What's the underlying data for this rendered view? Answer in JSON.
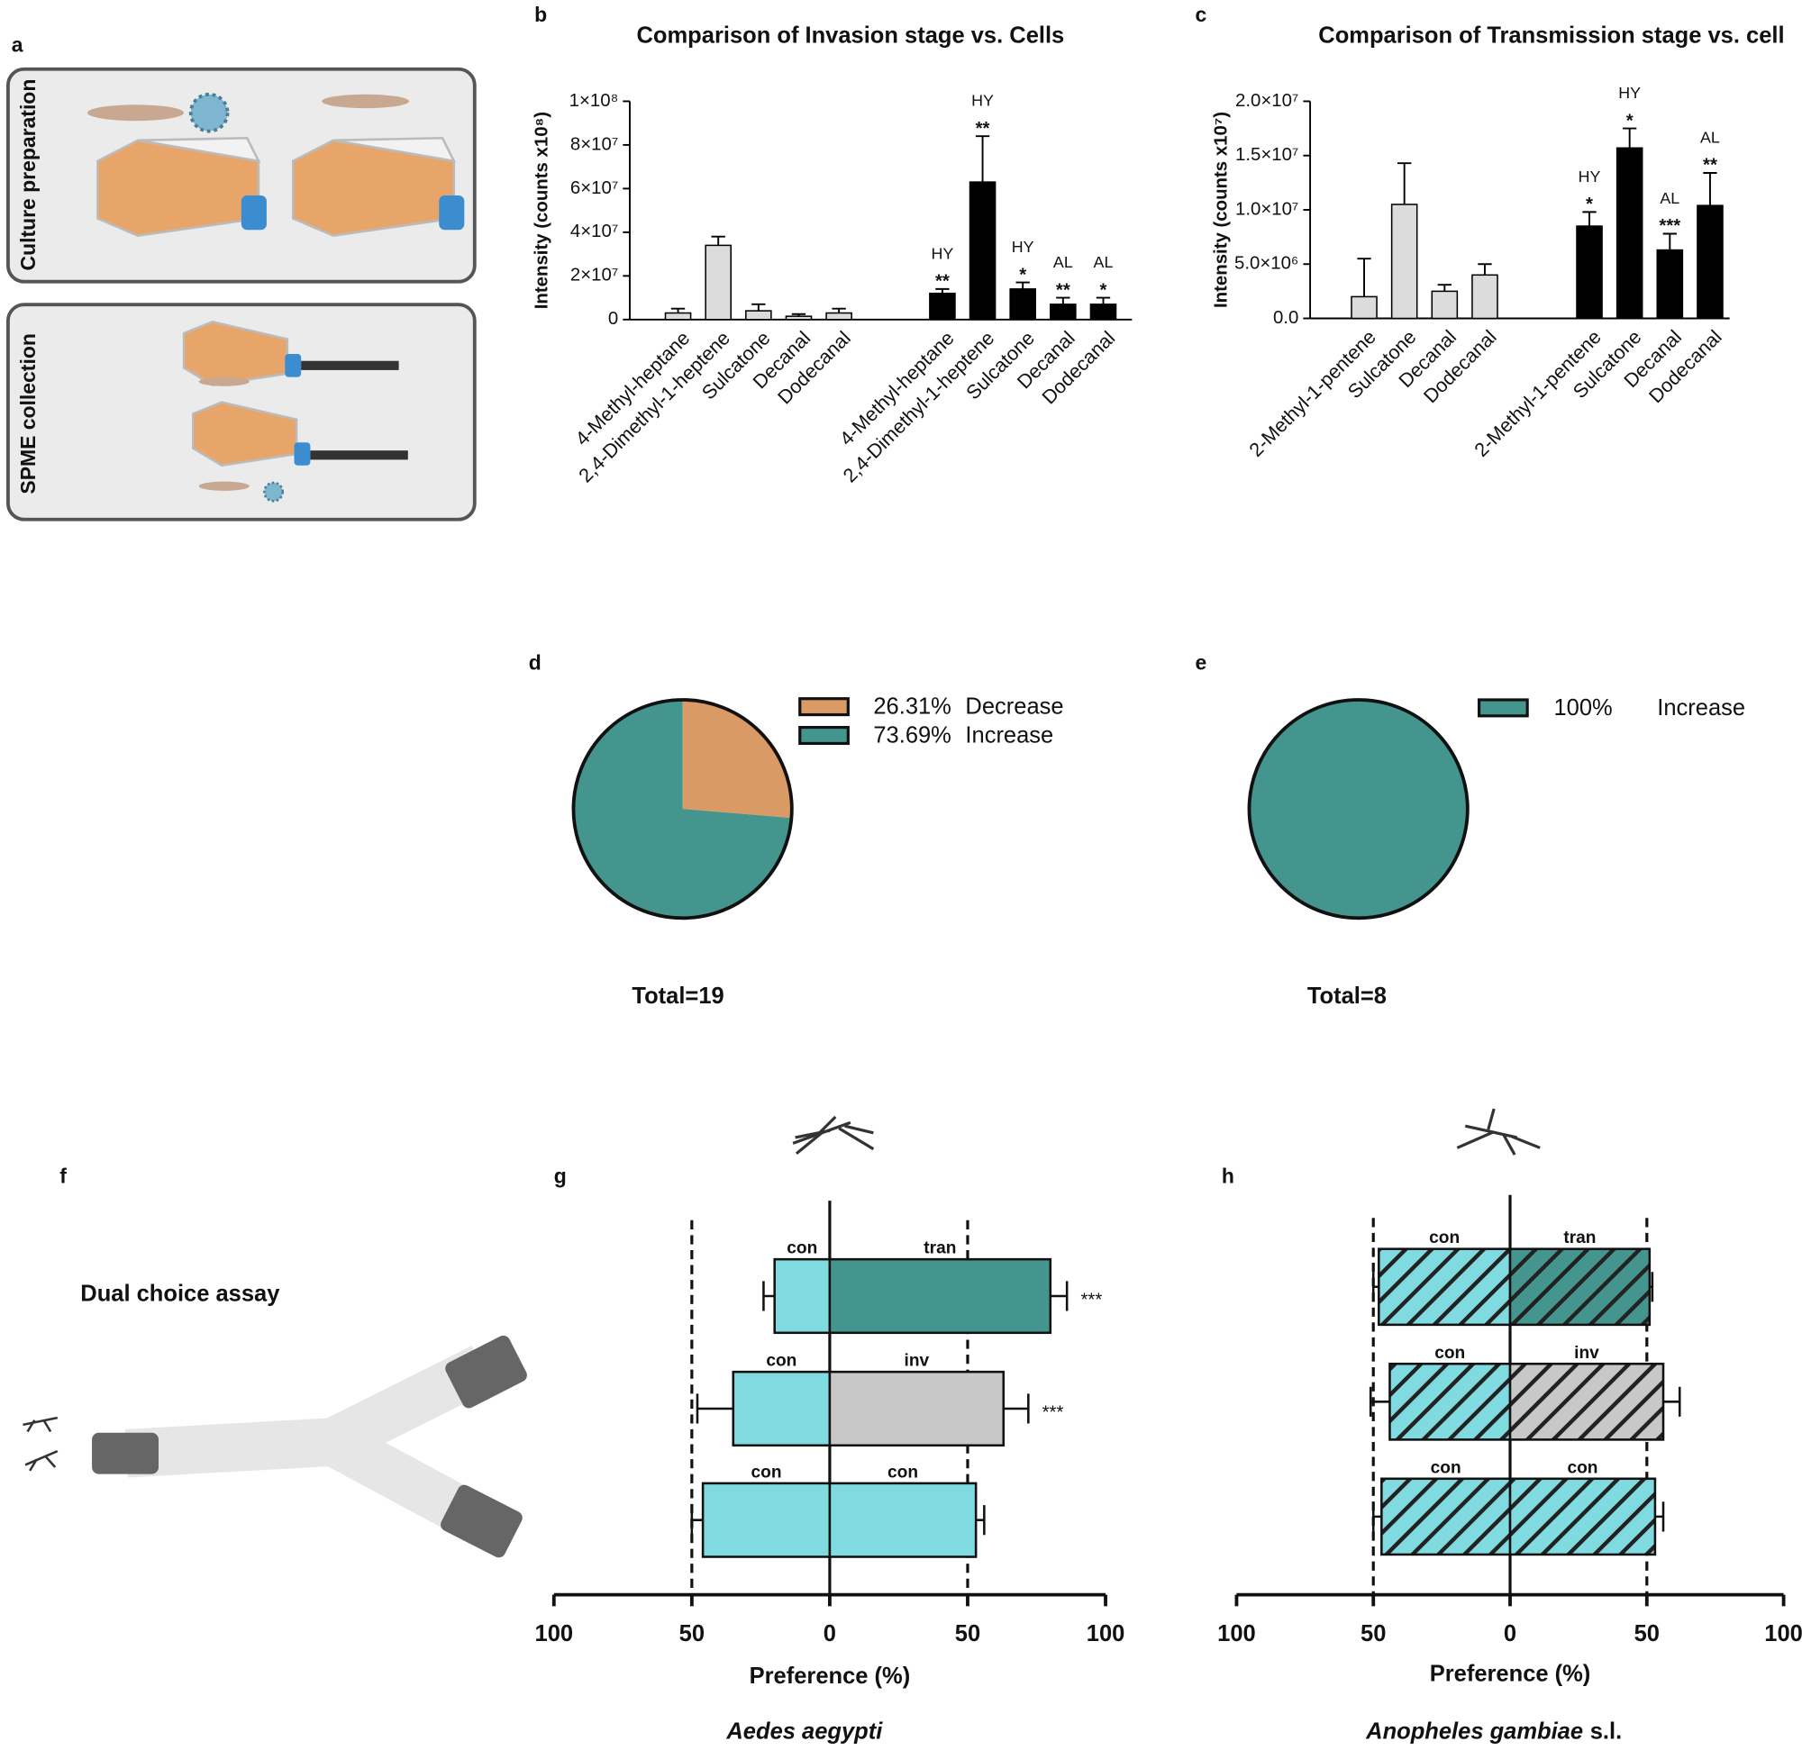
{
  "panels": {
    "a": {
      "label": "a",
      "steps": [
        "Culture preparation",
        "SPME collection"
      ]
    },
    "f": {
      "label": "f",
      "title": "Dual choice assay"
    }
  },
  "chart_data": [
    {
      "type": "bar",
      "label": "b",
      "title": "Comparison of Invasion stage vs. Cells",
      "ylabel": "Intensity (counts x10⁸)",
      "ylim": [
        0,
        100000000
      ],
      "yticks": [
        0,
        {
          "value": 20000000,
          "label": "2×10⁷"
        },
        {
          "value": 40000000,
          "label": "4×10⁷"
        },
        {
          "value": 60000000,
          "label": "6×10⁷"
        },
        {
          "value": 80000000,
          "label": "8×10⁷"
        },
        {
          "value": 100000000,
          "label": "1×10⁸"
        }
      ],
      "groups": [
        {
          "color": "#dcdcdc",
          "categories": [
            "4-Methyl-heptane",
            "2,4-Dimethyl-1-heptene",
            "Sulcatone",
            "Decanal",
            "Dodecanal"
          ],
          "values": [
            3000000,
            34000000,
            4000000,
            1500000,
            3000000
          ],
          "errors": [
            2000000,
            4000000,
            3000000,
            1000000,
            2000000
          ]
        },
        {
          "color": "#000000",
          "categories": [
            "4-Methyl-heptane",
            "2,4-Dimethyl-1-heptene",
            "Sulcatone",
            "Decanal",
            "Dodecanal"
          ],
          "values": [
            12000000,
            63000000,
            14000000,
            7000000,
            7000000
          ],
          "errors": [
            2000000,
            21000000,
            3000000,
            3000000,
            3000000
          ],
          "annotations": [
            "HY",
            "HY",
            "HY",
            "AL",
            "AL"
          ],
          "significance": [
            "**",
            "**",
            "*",
            "**",
            "*"
          ]
        }
      ]
    },
    {
      "type": "bar",
      "label": "c",
      "title": "Comparison of Transmission stage vs. cell",
      "ylabel": "Intensity (counts x10⁷)",
      "ylim": [
        0,
        20000000
      ],
      "yticks": [
        {
          "value": 0,
          "label": "0.0"
        },
        {
          "value": 5000000,
          "label": "5.0×10⁶"
        },
        {
          "value": 10000000,
          "label": "1.0×10⁷"
        },
        {
          "value": 15000000,
          "label": "1.5×10⁷"
        },
        {
          "value": 20000000,
          "label": "2.0×10⁷"
        }
      ],
      "groups": [
        {
          "color": "#dcdcdc",
          "categories": [
            "2-Methyl-1-pentene",
            "Sulcatone",
            "Decanal",
            "Dodecanal"
          ],
          "values": [
            2000000,
            10500000,
            2500000,
            4000000
          ],
          "errors": [
            3500000,
            3800000,
            600000,
            1000000
          ]
        },
        {
          "color": "#000000",
          "categories": [
            "2-Methyl-1-pentene",
            "Sulcatone",
            "Decanal",
            "Dodecanal"
          ],
          "values": [
            8500000,
            15700000,
            6300000,
            10400000
          ],
          "errors": [
            1300000,
            1800000,
            1500000,
            3000000
          ],
          "annotations": [
            "HY",
            "HY",
            "AL",
            "AL"
          ],
          "significance": [
            "*",
            "*",
            "***",
            "**"
          ]
        }
      ]
    },
    {
      "type": "pie",
      "label": "d",
      "categories": [
        "Decrease",
        "Increase"
      ],
      "values": [
        26.31,
        73.69
      ],
      "value_labels": [
        "26.31%",
        "73.69%"
      ],
      "colors": [
        "#d99a66",
        "#45958f"
      ],
      "footer": "Total=19"
    },
    {
      "type": "pie",
      "label": "e",
      "categories": [
        "Increase"
      ],
      "values": [
        100
      ],
      "value_labels": [
        "100%"
      ],
      "colors": [
        "#45958f"
      ],
      "footer": "Total=8"
    },
    {
      "type": "diverging_bar",
      "label": "g",
      "xlabel": "Preference (%)",
      "subtitle": "Aedes aegypti",
      "xlim": [
        -100,
        100
      ],
      "xticks": [
        {
          "value": -100,
          "label": "100"
        },
        {
          "value": -50,
          "label": "50"
        },
        0,
        50,
        100
      ],
      "reflines": [
        -50,
        50
      ],
      "hatch": false,
      "rows": [
        {
          "left": {
            "label": "con",
            "value": -20,
            "error": 4,
            "color": "#80dbe0"
          },
          "right": {
            "label": "tran",
            "value": 80,
            "error": 6,
            "color": "#45958f"
          },
          "significance": "***"
        },
        {
          "left": {
            "label": "con",
            "value": -35,
            "error": 13,
            "color": "#80dbe0"
          },
          "right": {
            "label": "inv",
            "value": 63,
            "error": 9,
            "color": "#c8c8c8"
          },
          "significance": "***"
        },
        {
          "left": {
            "label": "con",
            "value": -46,
            "error": 4,
            "color": "#80dbe0"
          },
          "right": {
            "label": "con",
            "value": 53,
            "error": 3,
            "color": "#80dbe0"
          }
        }
      ]
    },
    {
      "type": "diverging_bar",
      "label": "h",
      "xlabel": "Preference (%)",
      "subtitle": "Anopheles gambiae",
      "subtitle_note": "s.l.",
      "xlim": [
        -100,
        100
      ],
      "xticks": [
        {
          "value": -100,
          "label": "100"
        },
        {
          "value": -50,
          "label": "50"
        },
        0,
        50,
        100
      ],
      "reflines": [
        -50,
        50
      ],
      "hatch": true,
      "rows": [
        {
          "left": {
            "label": "con",
            "value": -48,
            "error": 2,
            "color": "#80dbe0"
          },
          "right": {
            "label": "tran",
            "value": 51,
            "error": 1,
            "color": "#45958f"
          }
        },
        {
          "left": {
            "label": "con",
            "value": -44,
            "error": 7,
            "color": "#80dbe0"
          },
          "right": {
            "label": "inv",
            "value": 56,
            "error": 6,
            "color": "#c8c8c8"
          }
        },
        {
          "left": {
            "label": "con",
            "value": -47,
            "error": 3,
            "color": "#80dbe0"
          },
          "right": {
            "label": "con",
            "value": 53,
            "error": 3,
            "color": "#80dbe0"
          }
        }
      ]
    }
  ]
}
